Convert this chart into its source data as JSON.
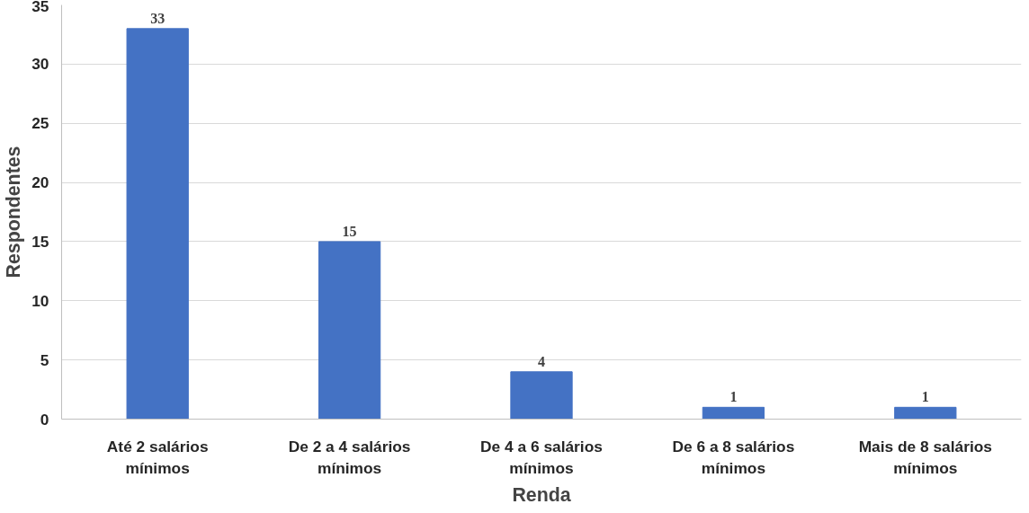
{
  "chart_data": {
    "type": "bar",
    "xlabel": "Renda",
    "ylabel": "Respondentes",
    "categories": [
      "Até 2 salários mínimos",
      "De 2 a 4 salários mínimos",
      "De 4 a 6 salários mínimos",
      "De 6 a 8 salários mínimos",
      "Mais de 8 salários mínimos"
    ],
    "values": [
      33,
      15,
      4,
      1,
      1
    ],
    "color": "#4472c4",
    "ylim": [
      0,
      35
    ],
    "yticks": [
      0,
      5,
      10,
      15,
      20,
      25,
      30,
      35
    ],
    "grid": "y",
    "data_labels": true
  }
}
